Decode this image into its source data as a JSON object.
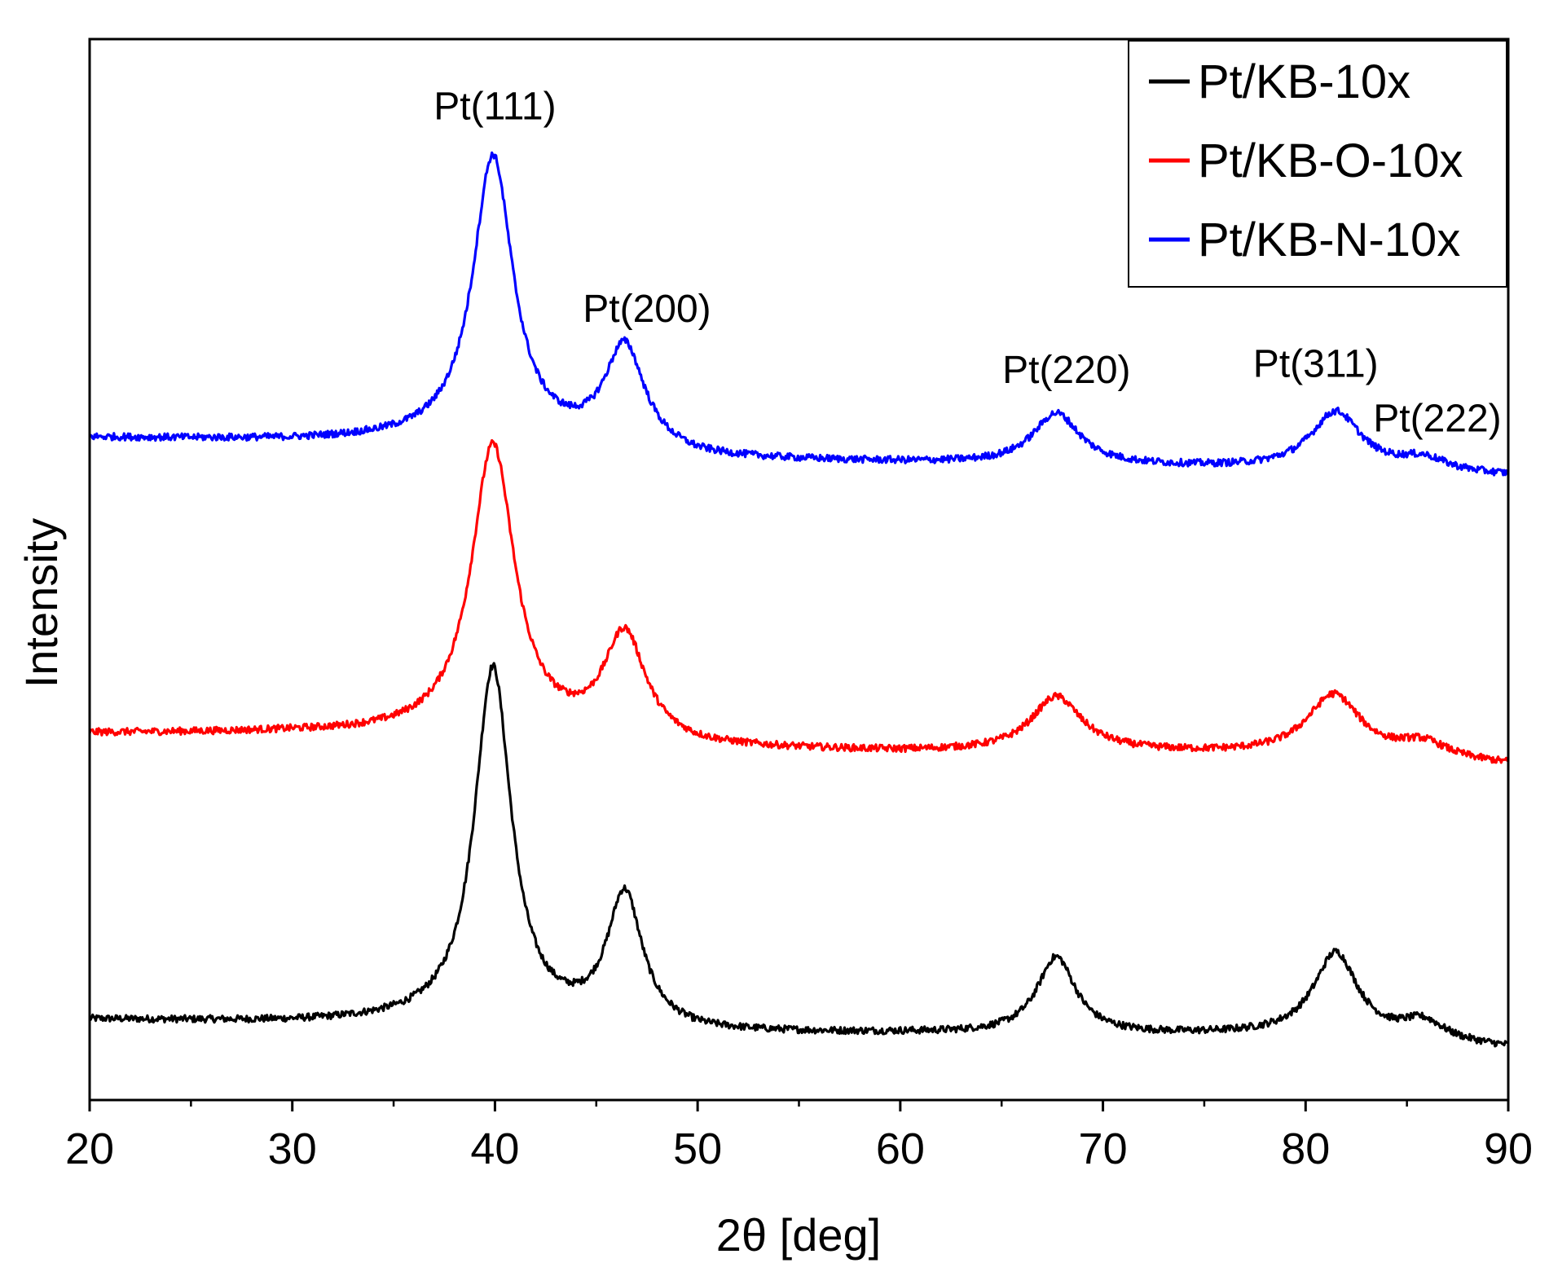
{
  "chart_data": {
    "type": "line",
    "title": "",
    "xlabel": "2θ [deg]",
    "ylabel": "Intensity",
    "xlim": [
      20,
      90
    ],
    "ylim": [
      0,
      3.3
    ],
    "x_ticks": [
      20,
      30,
      40,
      50,
      60,
      70,
      80,
      90
    ],
    "x_minor_step": 5,
    "y_ticks_shown": false,
    "grid": false,
    "legend_position": "top-right",
    "series": [
      {
        "name": "Pt/KB-10x",
        "color": "#000000",
        "offset": 0.25,
        "baseline": [
          [
            20,
            0.0
          ],
          [
            30,
            -0.01
          ],
          [
            40,
            -0.01
          ],
          [
            50,
            -0.045
          ],
          [
            60,
            -0.045
          ],
          [
            70,
            -0.05
          ],
          [
            80,
            -0.05
          ],
          [
            90,
            -0.09
          ]
        ],
        "peaks": [
          {
            "center": 39.9,
            "height": 1.1,
            "width": 1.1
          },
          {
            "center": 46.4,
            "height": 0.41,
            "width": 1.05
          },
          {
            "center": 67.7,
            "height": 0.24,
            "width": 1.15
          },
          {
            "center": 81.5,
            "height": 0.26,
            "width": 1.3
          },
          {
            "center": 85.8,
            "height": 0.06,
            "width": 1.3
          }
        ]
      },
      {
        "name": "Pt/KB-O-10x",
        "color": "#ff0000",
        "offset": 1.14,
        "baseline": [
          [
            20,
            0.0
          ],
          [
            30,
            0.0
          ],
          [
            40,
            -0.01
          ],
          [
            50,
            -0.05
          ],
          [
            60,
            -0.06
          ],
          [
            70,
            -0.06
          ],
          [
            80,
            -0.07
          ],
          [
            90,
            -0.1
          ]
        ],
        "peaks": [
          {
            "center": 39.9,
            "height": 0.9,
            "width": 1.3
          },
          {
            "center": 46.4,
            "height": 0.33,
            "width": 1.25
          },
          {
            "center": 67.7,
            "height": 0.17,
            "width": 1.5
          },
          {
            "center": 81.4,
            "height": 0.19,
            "width": 1.6
          },
          {
            "center": 85.8,
            "height": 0.05,
            "width": 1.5
          }
        ]
      },
      {
        "name": "Pt/KB-N-10x",
        "color": "#0000ff",
        "offset": 2.06,
        "baseline": [
          [
            20,
            0.0
          ],
          [
            30,
            -0.01
          ],
          [
            40,
            -0.01
          ],
          [
            50,
            -0.07
          ],
          [
            60,
            -0.08
          ],
          [
            70,
            -0.09
          ],
          [
            80,
            -0.1
          ],
          [
            90,
            -0.12
          ]
        ],
        "peaks": [
          {
            "center": 39.9,
            "height": 0.88,
            "width": 1.2
          },
          {
            "center": 46.4,
            "height": 0.32,
            "width": 1.2
          },
          {
            "center": 67.7,
            "height": 0.16,
            "width": 1.4
          },
          {
            "center": 81.5,
            "height": 0.18,
            "width": 1.5
          },
          {
            "center": 85.8,
            "height": 0.04,
            "width": 1.4
          }
        ]
      }
    ],
    "annotations": [
      {
        "text": "Pt(111)",
        "x": 40.0,
        "y": 3.05
      },
      {
        "text": "Pt(200)",
        "x": 47.5,
        "y": 2.42
      },
      {
        "text": "Pt(220)",
        "x": 68.2,
        "y": 2.23
      },
      {
        "text": "Pt(311)",
        "x": 80.5,
        "y": 2.25
      },
      {
        "text": "Pt(222)",
        "x": 86.5,
        "y": 2.08
      }
    ]
  }
}
